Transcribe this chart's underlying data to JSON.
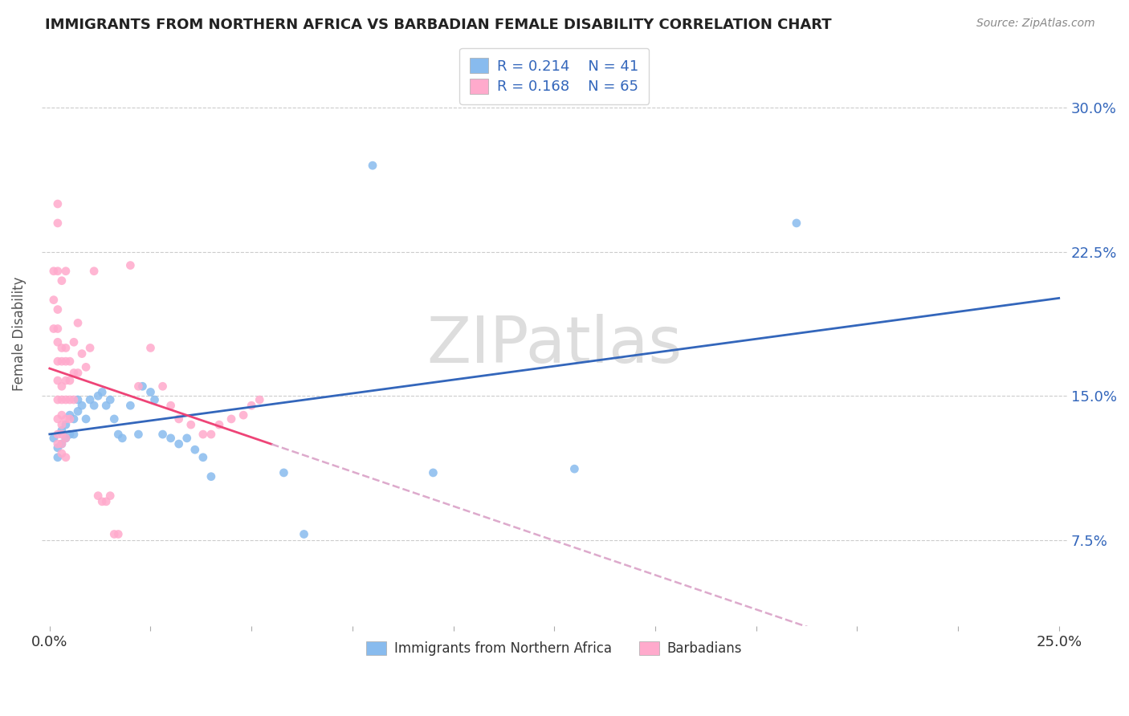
{
  "title": "IMMIGRANTS FROM NORTHERN AFRICA VS BARBADIAN FEMALE DISABILITY CORRELATION CHART",
  "source": "Source: ZipAtlas.com",
  "ylabel": "Female Disability",
  "ytick_labels": [
    "7.5%",
    "15.0%",
    "22.5%",
    "30.0%"
  ],
  "ytick_values": [
    0.075,
    0.15,
    0.225,
    0.3
  ],
  "xlim": [
    -0.002,
    0.252
  ],
  "ylim": [
    0.03,
    0.335
  ],
  "color_blue": "#88BBEE",
  "color_pink": "#FFAACC",
  "color_trendline_blue": "#3366BB",
  "color_trendline_pink": "#EE4477",
  "color_trendline_pink_dashed": "#DDAACC",
  "watermark": "ZIPatlas",
  "blue_scatter": [
    [
      0.001,
      0.128
    ],
    [
      0.002,
      0.123
    ],
    [
      0.002,
      0.118
    ],
    [
      0.003,
      0.125
    ],
    [
      0.003,
      0.132
    ],
    [
      0.004,
      0.128
    ],
    [
      0.004,
      0.135
    ],
    [
      0.005,
      0.13
    ],
    [
      0.005,
      0.14
    ],
    [
      0.006,
      0.138
    ],
    [
      0.006,
      0.13
    ],
    [
      0.007,
      0.148
    ],
    [
      0.007,
      0.142
    ],
    [
      0.008,
      0.145
    ],
    [
      0.009,
      0.138
    ],
    [
      0.01,
      0.148
    ],
    [
      0.011,
      0.145
    ],
    [
      0.012,
      0.15
    ],
    [
      0.013,
      0.152
    ],
    [
      0.014,
      0.145
    ],
    [
      0.015,
      0.148
    ],
    [
      0.016,
      0.138
    ],
    [
      0.017,
      0.13
    ],
    [
      0.018,
      0.128
    ],
    [
      0.02,
      0.145
    ],
    [
      0.022,
      0.13
    ],
    [
      0.023,
      0.155
    ],
    [
      0.025,
      0.152
    ],
    [
      0.026,
      0.148
    ],
    [
      0.028,
      0.13
    ],
    [
      0.03,
      0.128
    ],
    [
      0.032,
      0.125
    ],
    [
      0.034,
      0.128
    ],
    [
      0.036,
      0.122
    ],
    [
      0.038,
      0.118
    ],
    [
      0.04,
      0.108
    ],
    [
      0.058,
      0.11
    ],
    [
      0.063,
      0.078
    ],
    [
      0.08,
      0.27
    ],
    [
      0.095,
      0.11
    ],
    [
      0.13,
      0.112
    ],
    [
      0.185,
      0.24
    ]
  ],
  "pink_scatter": [
    [
      0.001,
      0.215
    ],
    [
      0.001,
      0.2
    ],
    [
      0.001,
      0.185
    ],
    [
      0.002,
      0.25
    ],
    [
      0.002,
      0.24
    ],
    [
      0.002,
      0.215
    ],
    [
      0.002,
      0.195
    ],
    [
      0.002,
      0.185
    ],
    [
      0.002,
      0.178
    ],
    [
      0.002,
      0.168
    ],
    [
      0.002,
      0.158
    ],
    [
      0.002,
      0.148
    ],
    [
      0.002,
      0.138
    ],
    [
      0.002,
      0.13
    ],
    [
      0.002,
      0.125
    ],
    [
      0.003,
      0.21
    ],
    [
      0.003,
      0.175
    ],
    [
      0.003,
      0.168
    ],
    [
      0.003,
      0.155
    ],
    [
      0.003,
      0.148
    ],
    [
      0.003,
      0.14
    ],
    [
      0.003,
      0.135
    ],
    [
      0.003,
      0.13
    ],
    [
      0.003,
      0.125
    ],
    [
      0.003,
      0.12
    ],
    [
      0.004,
      0.215
    ],
    [
      0.004,
      0.175
    ],
    [
      0.004,
      0.168
    ],
    [
      0.004,
      0.158
    ],
    [
      0.004,
      0.148
    ],
    [
      0.004,
      0.138
    ],
    [
      0.004,
      0.128
    ],
    [
      0.004,
      0.118
    ],
    [
      0.005,
      0.168
    ],
    [
      0.005,
      0.158
    ],
    [
      0.005,
      0.148
    ],
    [
      0.005,
      0.138
    ],
    [
      0.006,
      0.178
    ],
    [
      0.006,
      0.162
    ],
    [
      0.006,
      0.148
    ],
    [
      0.007,
      0.188
    ],
    [
      0.007,
      0.162
    ],
    [
      0.008,
      0.172
    ],
    [
      0.009,
      0.165
    ],
    [
      0.01,
      0.175
    ],
    [
      0.011,
      0.215
    ],
    [
      0.012,
      0.098
    ],
    [
      0.013,
      0.095
    ],
    [
      0.014,
      0.095
    ],
    [
      0.015,
      0.098
    ],
    [
      0.016,
      0.078
    ],
    [
      0.017,
      0.078
    ],
    [
      0.02,
      0.218
    ],
    [
      0.022,
      0.155
    ],
    [
      0.025,
      0.175
    ],
    [
      0.028,
      0.155
    ],
    [
      0.03,
      0.145
    ],
    [
      0.032,
      0.138
    ],
    [
      0.035,
      0.135
    ],
    [
      0.038,
      0.13
    ],
    [
      0.04,
      0.13
    ],
    [
      0.042,
      0.135
    ],
    [
      0.045,
      0.138
    ],
    [
      0.048,
      0.14
    ],
    [
      0.05,
      0.145
    ],
    [
      0.052,
      0.148
    ]
  ],
  "xtick_positions": [
    0.0,
    0.025,
    0.05,
    0.075,
    0.1,
    0.125,
    0.15,
    0.175,
    0.2,
    0.225,
    0.25
  ],
  "xtick_show_labels": [
    0.0,
    0.25
  ]
}
